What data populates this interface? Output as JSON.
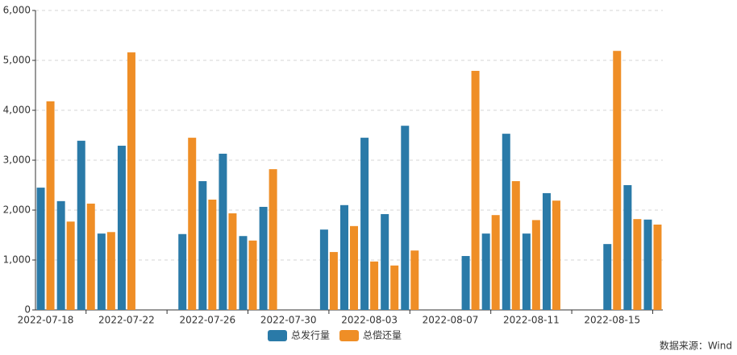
{
  "chart_data": {
    "type": "bar",
    "categories": [
      "2022-07-18",
      null,
      null,
      null,
      "2022-07-22",
      null,
      null,
      null,
      "2022-07-26",
      null,
      null,
      null,
      "2022-07-30",
      null,
      null,
      null,
      "2022-08-03",
      null,
      null,
      null,
      "2022-08-07",
      null,
      null,
      null,
      "2022-08-11",
      null,
      null,
      null,
      "2022-08-15",
      null,
      null
    ],
    "series": [
      {
        "name": "总发行量",
        "color": "#2a7aa8",
        "values": [
          2450,
          2180,
          3390,
          1530,
          3290,
          null,
          null,
          1520,
          2580,
          3130,
          1480,
          2065,
          null,
          null,
          1610,
          2100,
          3450,
          1920,
          3690,
          null,
          null,
          1080,
          1530,
          3530,
          1530,
          2340,
          null,
          null,
          1320,
          2500,
          1810
        ]
      },
      {
        "name": "总偿还量",
        "color": "#ef8e26",
        "values": [
          4180,
          1770,
          2130,
          1560,
          5160,
          null,
          null,
          3450,
          2210,
          1935,
          1390,
          2820,
          null,
          null,
          1160,
          1680,
          970,
          890,
          1190,
          null,
          null,
          4790,
          1900,
          2580,
          1800,
          2190,
          null,
          null,
          5190,
          1820,
          1710
        ]
      }
    ],
    "ylim": [
      0,
      6000
    ],
    "yticks": [
      0,
      {
        "value": 1000,
        "label": "1,000"
      },
      {
        "value": 2000,
        "label": "2,000"
      },
      {
        "value": 3000,
        "label": "3,000"
      },
      {
        "value": 4000,
        "label": "4,000"
      },
      {
        "value": 5000,
        "label": "5,000"
      },
      {
        "value": 6000,
        "label": "6,000"
      }
    ],
    "grid": true,
    "legend": "bottom",
    "source": "数据来源：Wind"
  }
}
